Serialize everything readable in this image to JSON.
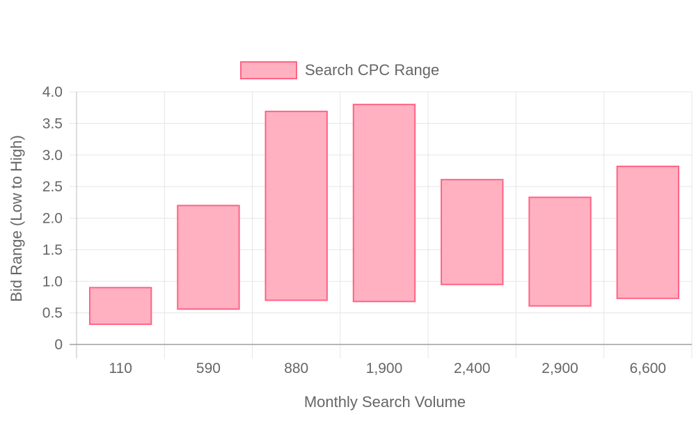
{
  "chart_data": {
    "type": "bar",
    "subtype": "floating-range",
    "title": "",
    "xlabel": "Monthly Search Volume",
    "ylabel": "Bid Range (Low to High)",
    "categories": [
      "110",
      "590",
      "880",
      "1,900",
      "2,400",
      "2,900",
      "6,600"
    ],
    "series": [
      {
        "name": "Search CPC Range",
        "low": [
          0.32,
          0.56,
          0.7,
          0.68,
          0.95,
          0.61,
          0.73
        ],
        "high": [
          0.9,
          2.2,
          3.69,
          3.8,
          2.61,
          2.33,
          2.82
        ],
        "fill_color": "#FFB1C1",
        "stroke_color": "#FF6384"
      }
    ],
    "ylim": [
      0,
      4.0
    ],
    "yticks": [
      "0",
      "0.5",
      "1.0",
      "1.5",
      "2.0",
      "2.5",
      "3.0",
      "3.5",
      "4.0"
    ],
    "grid": true,
    "legend_position": "top"
  }
}
